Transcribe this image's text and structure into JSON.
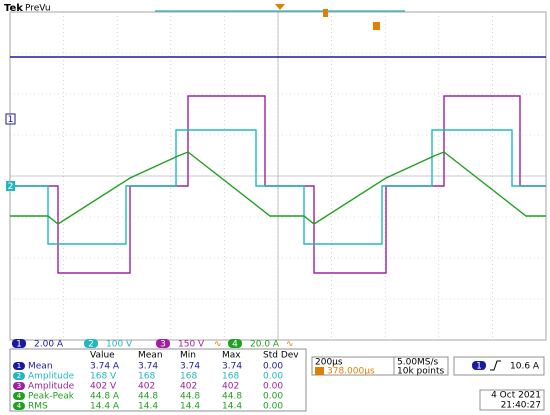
{
  "header": {
    "brand": "Tek",
    "mode": "PreVu"
  },
  "channels": [
    {
      "number": "1",
      "scale": "2.00 A"
    },
    {
      "number": "2",
      "scale": "100 V"
    },
    {
      "number": "3",
      "scale": "150 V",
      "coupling": "∿"
    },
    {
      "number": "4",
      "scale": "20.0 A",
      "coupling": "∿"
    }
  ],
  "measurements": {
    "columns": [
      "Value",
      "Mean",
      "Min",
      "Max",
      "Std Dev"
    ],
    "rows": [
      {
        "channel": "1",
        "name": "Mean",
        "cells": [
          "3.74 A",
          "3.74",
          "3.74",
          "3.74",
          "0.00"
        ]
      },
      {
        "channel": "2",
        "name": "Amplitude",
        "cells": [
          "168 V",
          "168",
          "168",
          "168",
          "0.00"
        ]
      },
      {
        "channel": "3",
        "name": "Amplitude",
        "cells": [
          "402 V",
          "402",
          "402",
          "402",
          "0.00"
        ]
      },
      {
        "channel": "4",
        "name": "Peak-Peak",
        "cells": [
          "44.8 A",
          "44.8",
          "44.8",
          "44.8",
          "0.00"
        ]
      },
      {
        "channel": "4",
        "name": "RMS",
        "cells": [
          "14.4 A",
          "14.4",
          "14.4",
          "14.4",
          "0.00"
        ]
      }
    ]
  },
  "timebase": {
    "scale": "200µs",
    "delay": "378.000µs",
    "sample_rate": "5.00MS/s",
    "record": "10k points"
  },
  "trigger": {
    "source": "1",
    "level": "10.6 A"
  },
  "date": "4 Oct  2021",
  "time": "21:40:27"
}
